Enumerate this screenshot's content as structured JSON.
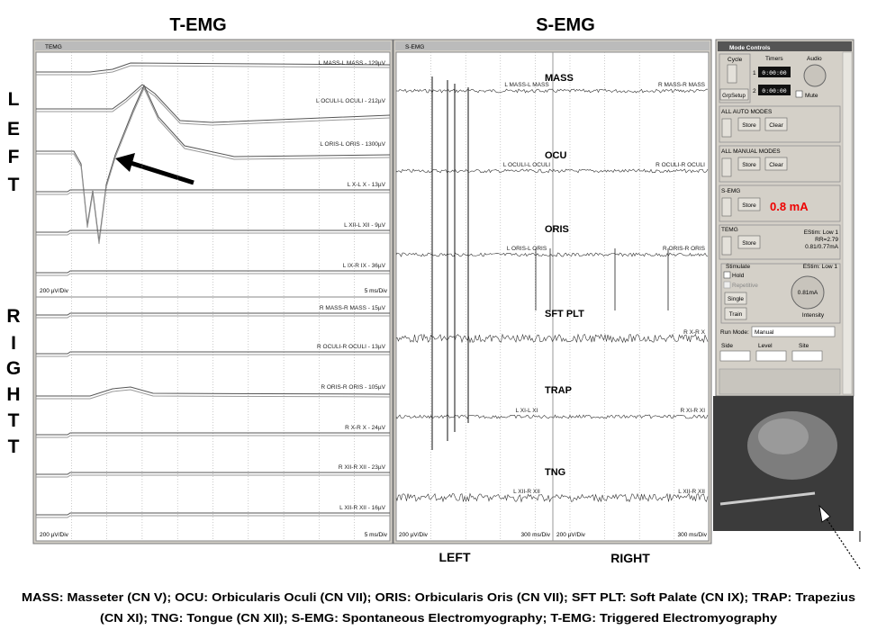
{
  "header": {
    "temg": "T-EMG",
    "semg": "S-EMG"
  },
  "side_labels": {
    "left": [
      "L",
      "E",
      "F",
      "T"
    ],
    "right": [
      "R",
      "I",
      "G",
      "H",
      "T",
      "T"
    ]
  },
  "temg_window": {
    "title": "TEMG",
    "channels": [
      "L MASS-L MASS - 129µV",
      "L OCULI-L OCULI - 212µV",
      "L ORIS-L ORIS - 1300µV",
      "L X-L X - 13µV",
      "L XII-L XII - 9µV",
      "L IX-R IX - 36µV",
      "R MASS-R MASS - 15µV",
      "R OCULI-R OCULI - 13µV",
      "R ORIS-R ORIS - 105µV",
      "R X-R X - 24µV",
      "R XII-R XII - 23µV",
      "L XII-R XII - 16µV"
    ],
    "scales": [
      "200 µV/Div",
      "5 ms/Div",
      "200 µV/Div",
      "5 ms/Div"
    ]
  },
  "semg_window": {
    "title": "S-EMG",
    "channels": [
      {
        "name": "MASS",
        "left": "L MASS-L MASS",
        "right": "R MASS-R MASS"
      },
      {
        "name": "OCU",
        "left": "L OCULI-L OCULI",
        "right": "R OCULI-R OCULI"
      },
      {
        "name": "ORIS",
        "left": "L ORIS-L ORIS",
        "right": "R ORIS-R ORIS"
      },
      {
        "name": "SFT PLT",
        "right": "R X-R X"
      },
      {
        "name": "TRAP",
        "left": "L XI-L XI",
        "right": "R XI-R XI"
      },
      {
        "name": "TNG",
        "left": "L XII-R XII",
        "right": "L XII-R XII"
      }
    ],
    "scales": [
      "200 µV/Div",
      "300 ms/Div",
      "200 µV/Div",
      "300 ms/Div"
    ]
  },
  "mode_controls": {
    "title": "Mode Controls",
    "cycle": "Cycle",
    "timers": "Timers",
    "audio": "Audio",
    "timer_rows": [
      "1",
      "2"
    ],
    "timer_values": [
      "0:00:00",
      "0:00:00"
    ],
    "grp_setup": "GrpSetup",
    "mute": "Mute",
    "auto": {
      "label": "ALL AUTO MODES",
      "store": "Store",
      "clear": "Clear"
    },
    "manual": {
      "label": "ALL MANUAL MODES",
      "store": "Store",
      "clear": "Clear"
    },
    "semg": {
      "label": "S-EMG",
      "store": "Store",
      "reading": "0.8 mA"
    },
    "temg": {
      "label": "TEMG",
      "store": "Store",
      "info": [
        "EStim: Low 1",
        "RR=2.79",
        "0.81/0.77mA"
      ]
    },
    "stimulate": {
      "label": "Stimulate",
      "hold": "Hold",
      "repetitive": "Repetitive",
      "single": "Single",
      "train": "Train",
      "estim": "EStim: Low 1",
      "value": "0.81mA",
      "intensity": "Intensity"
    },
    "run_mode": {
      "label": "Run Mode:",
      "value": "Manual"
    },
    "selectors": [
      "Side",
      "Level",
      "Site"
    ]
  },
  "footer_labels": {
    "left": "LEFT",
    "right": "RIGHT"
  },
  "caption": [
    "MASS: Masseter (CN V); OCU: Orbicularis Oculi (CN VII); ORIS: Orbicularis Oris (CN VII); SFT PLT: Soft Palate (CN IX); TRAP: Trapezius",
    "(CN XI); TNG: Tongue (CN XII); S-EMG: Spontaneous Electromyography; T-EMG: Triggered Electromyography"
  ]
}
